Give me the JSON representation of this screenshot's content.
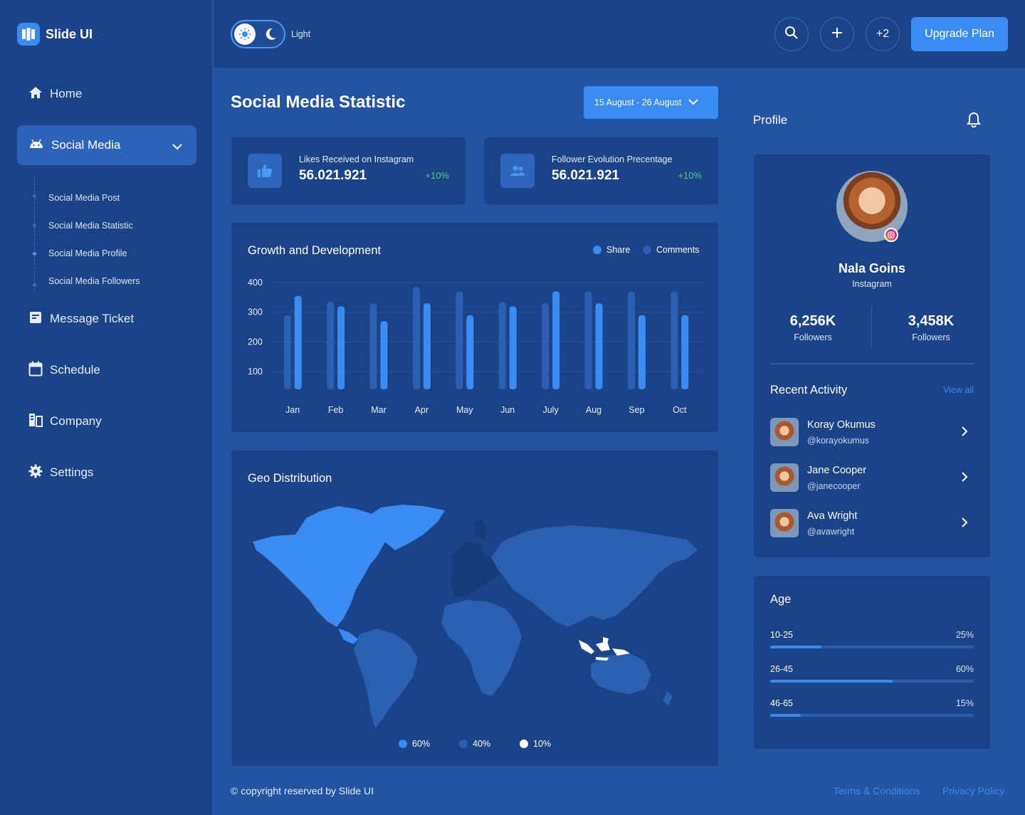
{
  "app": {
    "name": "Slide UI"
  },
  "sidebar": {
    "items": [
      {
        "label": "Home",
        "icon": "home-icon"
      },
      {
        "label": "Social Media",
        "icon": "android-icon",
        "active": true
      },
      {
        "label": "Message Ticket",
        "icon": "ticket-icon"
      },
      {
        "label": "Schedule",
        "icon": "calendar-icon"
      },
      {
        "label": "Company",
        "icon": "company-icon"
      },
      {
        "label": "Settings",
        "icon": "gear-icon"
      }
    ],
    "submenu": [
      "Social Media Post",
      "Social Media Statistic",
      "Social Media Profile",
      "Social Media Followers"
    ]
  },
  "topbar": {
    "theme_label": "Light",
    "extra_count": "+2",
    "upgrade_label": "Upgrade Plan"
  },
  "page": {
    "title": "Social Media Statistic",
    "date_range": "15 August - 26 August"
  },
  "stats": [
    {
      "label": "Likes Received on Instagram",
      "value": "56.021.921",
      "change": "+10%",
      "icon": "thumbs-up-icon"
    },
    {
      "label": "Follower Evolution Precentage",
      "value": "56.021.921",
      "change": "+10%",
      "icon": "users-icon"
    }
  ],
  "growth": {
    "title": "Growth and Development"
  },
  "chart_data": {
    "type": "bar",
    "title": "Growth and Development",
    "categories": [
      "Jan",
      "Feb",
      "Mar",
      "Apr",
      "May",
      "Jun",
      "July",
      "Aug",
      "Sep",
      "Oct"
    ],
    "series": [
      {
        "name": "Share",
        "color": "#3a8cf2",
        "values": [
          355,
          320,
          270,
          330,
          290,
          320,
          370,
          330,
          290,
          290
        ]
      },
      {
        "name": "Comments",
        "color": "#2a5fb3",
        "values": [
          290,
          335,
          330,
          385,
          370,
          335,
          330,
          370,
          370,
          370
        ]
      }
    ],
    "yticks": [
      100,
      200,
      300,
      400
    ],
    "ylim": [
      40,
      400
    ],
    "grid": true,
    "legend": "top-right"
  },
  "geo": {
    "title": "Geo Distribution",
    "legend": [
      {
        "label": "60%",
        "color": "#3a8cf2"
      },
      {
        "label": "40%",
        "color": "#2a5fb3"
      },
      {
        "label": "10%",
        "color": "#ffffff"
      }
    ]
  },
  "profile": {
    "title": "Profile",
    "name": "Nala Goins",
    "platform": "Instagram",
    "stats": [
      {
        "value": "6,256K",
        "label": "Followers"
      },
      {
        "value": "3,458K",
        "label": "Followers"
      }
    ],
    "recent_title": "Recent Activity",
    "view_all": "View all",
    "activities": [
      {
        "name": "Koray Okumus",
        "handle": "@korayokumus"
      },
      {
        "name": "Jane Cooper",
        "handle": "@janecooper"
      },
      {
        "name": "Ava Wright",
        "handle": "@avawright"
      }
    ]
  },
  "age": {
    "title": "Age",
    "rows": [
      {
        "label": "10-25",
        "pct": "25%",
        "value": 0.25
      },
      {
        "label": "26-45",
        "pct": "60%",
        "value": 0.6
      },
      {
        "label": "46-65",
        "pct": "15%",
        "value": 0.15
      }
    ]
  },
  "footer": {
    "copyright": "© copyright reserved by Slide UI",
    "terms": "Terms & Conditions",
    "privacy": "Privacy Policy"
  }
}
